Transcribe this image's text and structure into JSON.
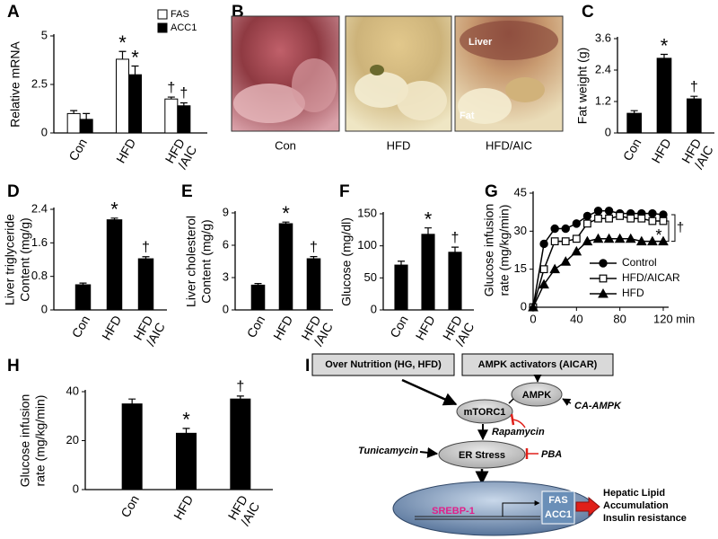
{
  "chart_data": [
    {
      "panel": "A",
      "type": "bar",
      "ylabel": "Relative mRNA",
      "categories": [
        "Con",
        "HFD",
        [
          "HFD",
          "/AIC"
        ]
      ],
      "ylim": [
        0,
        5
      ],
      "yticks": [
        0,
        2.5,
        5
      ],
      "legend": "upper right",
      "series": [
        {
          "name": "FAS",
          "color": "#ffffff",
          "values": [
            1.0,
            3.8,
            1.75
          ],
          "errors": [
            0.15,
            0.4,
            0.1
          ],
          "annotations": [
            null,
            "*",
            "†"
          ]
        },
        {
          "name": "ACC1",
          "color": "#000000",
          "values": [
            0.7,
            3.0,
            1.4
          ],
          "errors": [
            0.3,
            0.45,
            0.15
          ],
          "annotations": [
            null,
            "*",
            "†"
          ]
        }
      ]
    },
    {
      "panel": "C",
      "type": "bar",
      "ylabel": "Fat weight (g)",
      "categories": [
        "Con",
        "HFD",
        [
          "HFD",
          "/AIC"
        ]
      ],
      "ylim": [
        0,
        3.6
      ],
      "yticks": [
        0,
        1.2,
        2.4,
        3.6
      ],
      "series": [
        {
          "color": "#000000",
          "values": [
            0.75,
            2.85,
            1.3
          ],
          "errors": [
            0.1,
            0.15,
            0.1
          ],
          "annotations": [
            null,
            "*",
            "†"
          ]
        }
      ]
    },
    {
      "panel": "D",
      "type": "bar",
      "ylabel": [
        "Liver triglyceride",
        "Content (mg/g)"
      ],
      "categories": [
        "Con",
        "HFD",
        [
          "HFD",
          "/AIC"
        ]
      ],
      "ylim": [
        0,
        2.4
      ],
      "yticks": [
        0,
        0.8,
        1.6,
        2.4
      ],
      "series": [
        {
          "color": "#000000",
          "values": [
            0.6,
            2.15,
            1.22
          ],
          "errors": [
            0.04,
            0.04,
            0.05
          ],
          "annotations": [
            null,
            "*",
            "†"
          ]
        }
      ]
    },
    {
      "panel": "E",
      "type": "bar",
      "ylabel": [
        "Liver cholesterol",
        "Content (mg/g)"
      ],
      "categories": [
        "Con",
        "HFD",
        [
          "HFD",
          "/AIC"
        ]
      ],
      "ylim": [
        0,
        9
      ],
      "yticks": [
        0,
        3,
        6,
        9
      ],
      "series": [
        {
          "color": "#000000",
          "values": [
            2.3,
            8.0,
            4.75
          ],
          "errors": [
            0.15,
            0.15,
            0.2
          ],
          "annotations": [
            null,
            "*",
            "†"
          ]
        }
      ]
    },
    {
      "panel": "F",
      "type": "bar",
      "ylabel": "Glucose (mg/dl)",
      "categories": [
        "Con",
        "HFD",
        [
          "HFD",
          "/AIC"
        ]
      ],
      "ylim": [
        0,
        150
      ],
      "yticks": [
        0,
        50,
        100,
        150
      ],
      "series": [
        {
          "color": "#000000",
          "values": [
            70,
            118,
            90
          ],
          "errors": [
            6,
            10,
            8
          ],
          "annotations": [
            null,
            "*",
            "†"
          ]
        }
      ]
    },
    {
      "panel": "G",
      "type": "line",
      "ylabel": [
        "Glucose infusion",
        "rate (mg/kg/min)"
      ],
      "x": [
        0,
        10,
        20,
        30,
        40,
        50,
        60,
        70,
        80,
        90,
        100,
        110,
        120
      ],
      "xlim": [
        0,
        120
      ],
      "xticks": [
        0,
        40,
        80,
        {
          "value": 120,
          "label": "120 min"
        }
      ],
      "ylim": [
        0,
        45
      ],
      "yticks": [
        0,
        15,
        30,
        45
      ],
      "legend": "lower right",
      "annotations": [
        "*",
        "†"
      ],
      "series": [
        {
          "name": "Control",
          "color": "#000000",
          "marker": "circle",
          "filled": true,
          "values": [
            0,
            25,
            31,
            31,
            33,
            36,
            38,
            38,
            37,
            37,
            37,
            37,
            36.5
          ]
        },
        {
          "name": "HFD/AICAR",
          "color": "#000000",
          "marker": "square",
          "filled": false,
          "values": [
            0,
            15,
            26,
            26,
            27,
            33,
            35,
            35,
            36,
            35,
            35,
            34,
            34
          ]
        },
        {
          "name": "HFD",
          "color": "#000000",
          "marker": "triangle",
          "filled": true,
          "values": [
            0,
            9,
            15,
            18,
            22,
            26,
            27,
            27,
            27,
            27,
            26,
            26,
            26
          ]
        }
      ]
    },
    {
      "panel": "H",
      "type": "bar",
      "ylabel": [
        "Glucose infusion",
        "rate (mg/kg/min)"
      ],
      "categories": [
        "Con",
        "HFD",
        [
          "HFD",
          "/AIC"
        ]
      ],
      "ylim": [
        0,
        40
      ],
      "yticks": [
        0,
        20,
        40
      ],
      "series": [
        {
          "color": "#000000",
          "values": [
            35,
            23,
            37
          ],
          "errors": [
            2,
            2,
            1.2
          ],
          "annotations": [
            null,
            "*",
            "†"
          ]
        }
      ]
    }
  ],
  "photo_panel": {
    "panel": "B",
    "labels": [
      "Con",
      "HFD",
      "HFD/AIC"
    ],
    "overlays": [
      "Liver",
      "Fat"
    ]
  },
  "diagram": {
    "panel": "I",
    "inputs": [
      "Over Nutrition (HG, HFD)",
      "AMPK activators (AICAR)"
    ],
    "nodes": [
      "mTORC1",
      "AMPK",
      "ER Stress"
    ],
    "modulators": [
      "Rapamycin",
      "CA-AMPK",
      "Tunicamycin",
      "PBA"
    ],
    "nucleus": {
      "gene": "SREBP-1",
      "targets": [
        "FAS",
        "ACC1"
      ]
    },
    "outcome": [
      "Hepatic Lipid",
      "Accumulation",
      "Insulin resistance"
    ]
  }
}
